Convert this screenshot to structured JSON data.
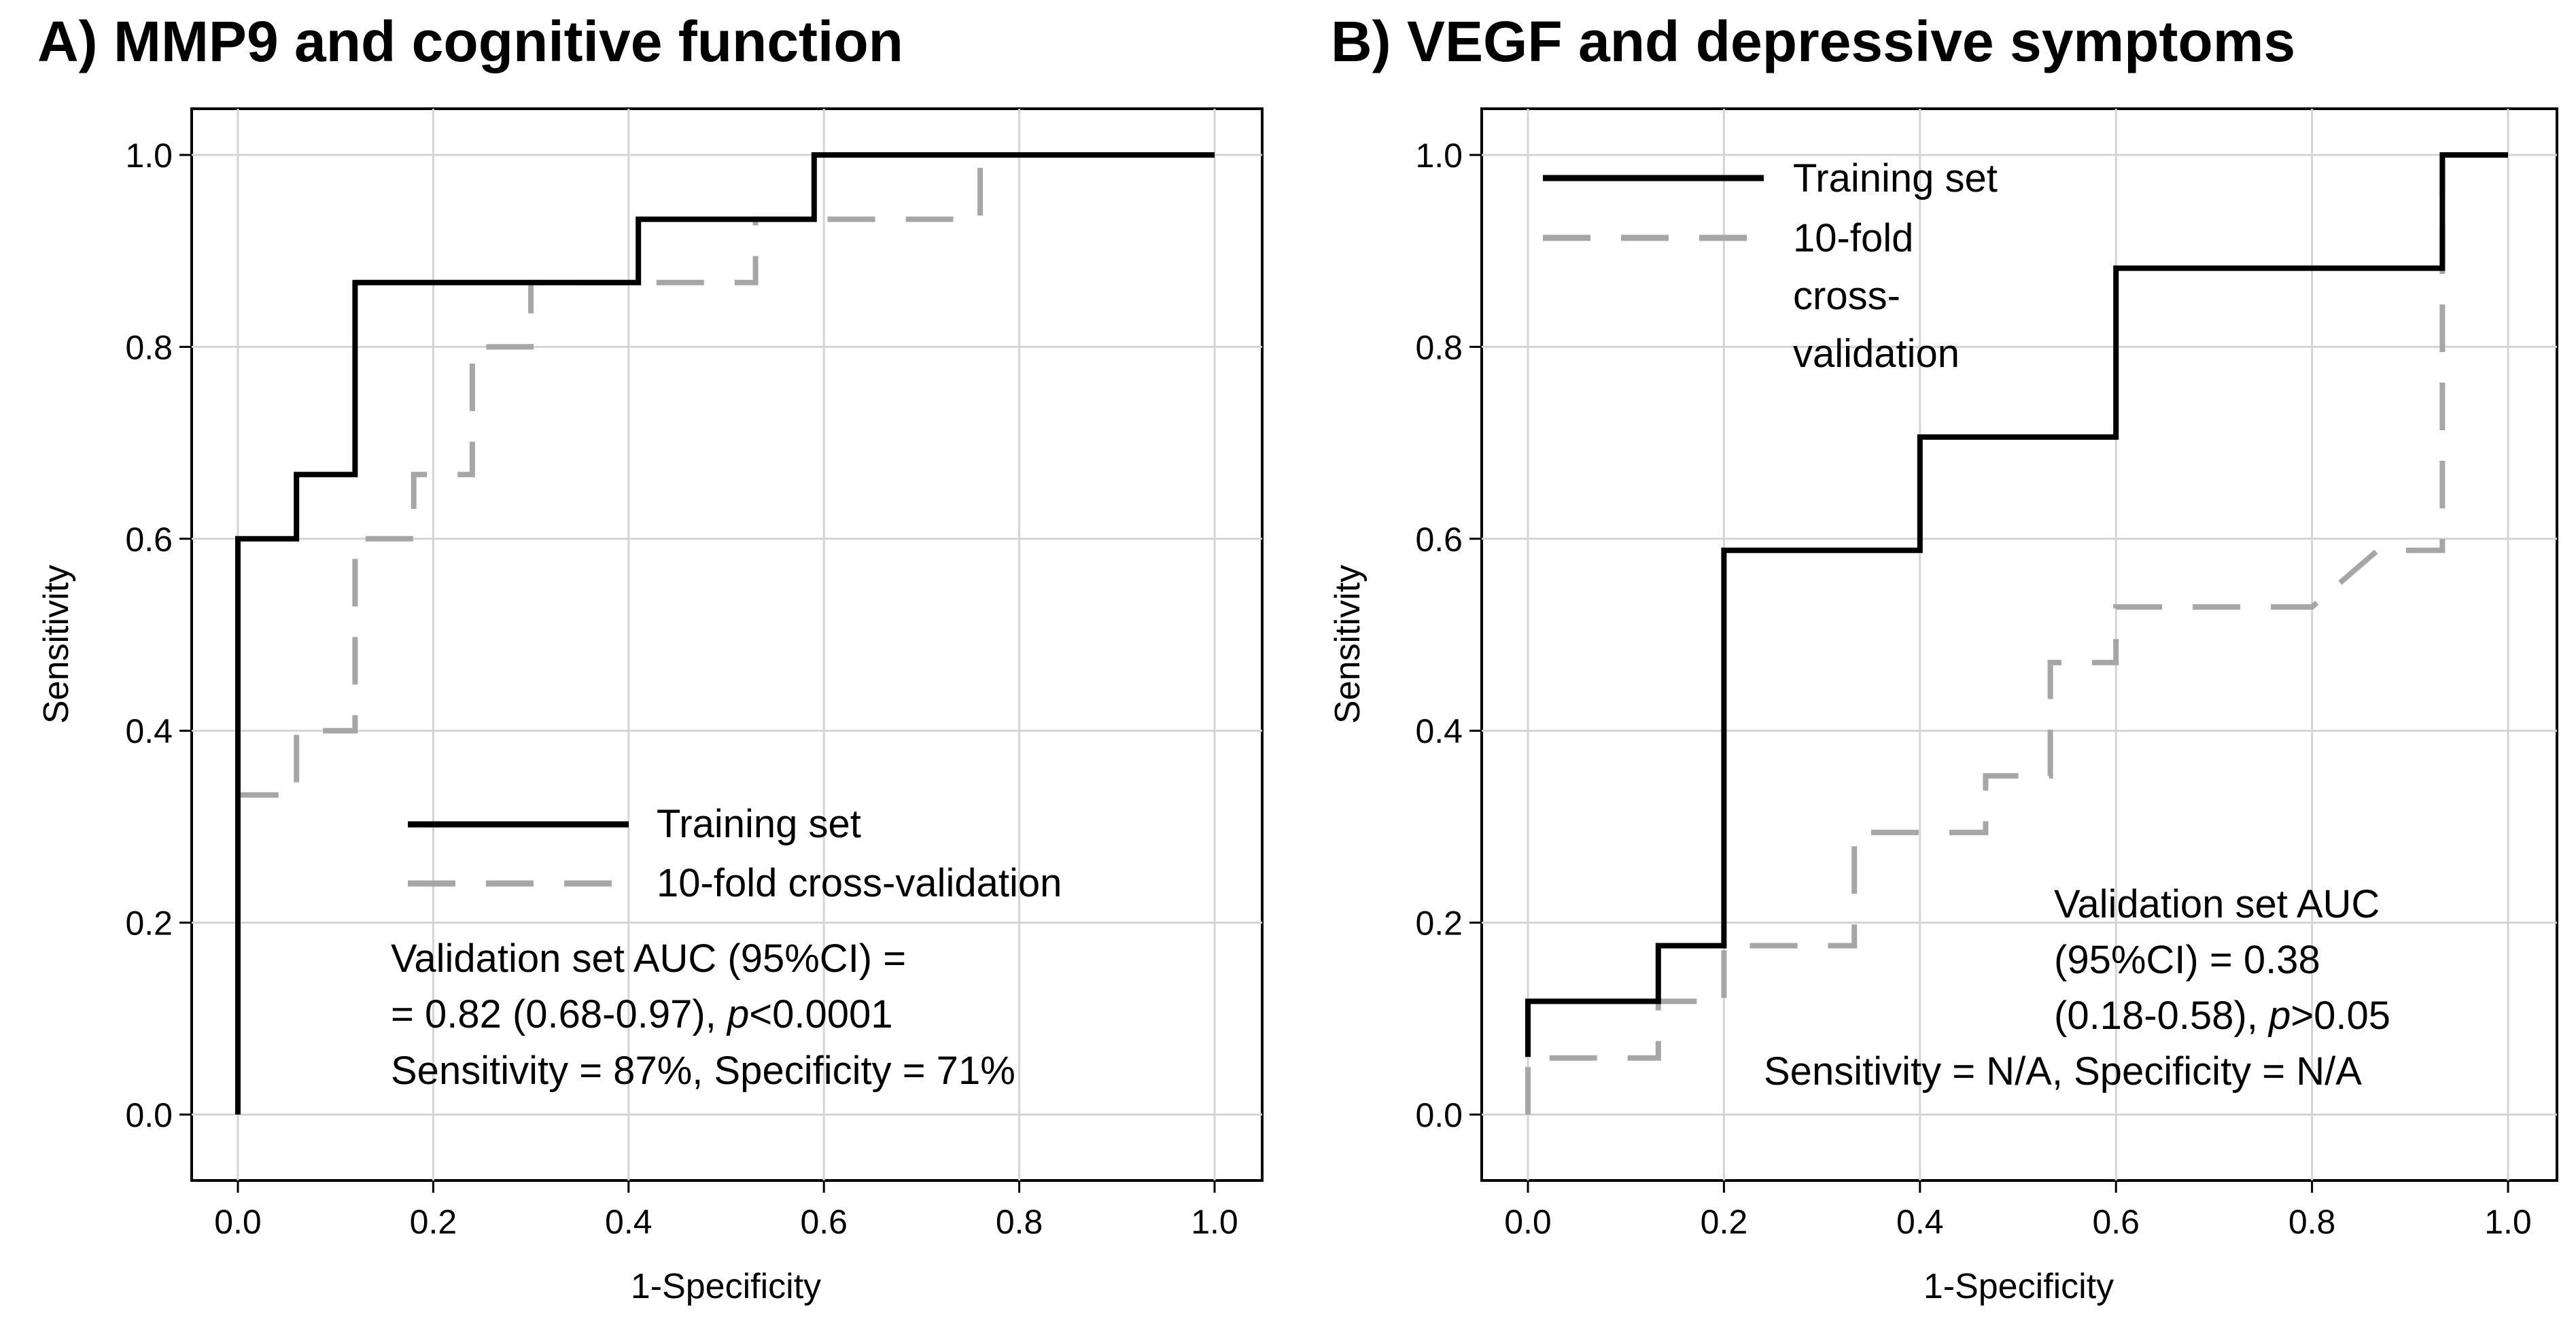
{
  "chart_data": [
    {
      "type": "line",
      "panel": "A",
      "title": "A) MMP9 and cognitive function",
      "xlabel": "1-Specificity",
      "ylabel": "Sensitivity",
      "xlim": [
        0,
        1
      ],
      "ylim": [
        0,
        1
      ],
      "xticks": [
        "0.0",
        "0.2",
        "0.4",
        "0.6",
        "0.8",
        "1.0"
      ],
      "yticks": [
        "0.0",
        "0.2",
        "0.4",
        "0.6",
        "0.8",
        "1.0"
      ],
      "grid": true,
      "legend_position": "lower-right",
      "series": [
        {
          "name": "Training set",
          "style": "solid",
          "color": "#000000",
          "x": [
            0,
            0,
            0.06,
            0.06,
            0.12,
            0.12,
            0.41,
            0.41,
            0.59,
            0.59,
            1.0
          ],
          "y": [
            0,
            0.6,
            0.6,
            0.667,
            0.667,
            0.867,
            0.867,
            0.933,
            0.933,
            1.0,
            1.0
          ]
        },
        {
          "name": "10-fold cross-validation",
          "style": "dashed",
          "color": "#a6a6a6",
          "x": [
            0,
            0,
            0.06,
            0.06,
            0.12,
            0.12,
            0.18,
            0.18,
            0.24,
            0.24,
            0.3,
            0.3,
            0.53,
            0.53,
            0.76,
            0.76,
            1.0
          ],
          "y": [
            0,
            0.333,
            0.333,
            0.4,
            0.4,
            0.6,
            0.6,
            0.667,
            0.667,
            0.8,
            0.8,
            0.867,
            0.867,
            0.933,
            0.933,
            1.0,
            1.0
          ]
        }
      ],
      "annotation": [
        "Validation set AUC (95%CI) =",
        "= 0.82 (0.68-0.97), ",
        "p",
        "<0.0001",
        "Sensitivity = 87%, Specificity = 71%"
      ]
    },
    {
      "type": "line",
      "panel": "B",
      "title": "B) VEGF and depressive symptoms",
      "xlabel": "1-Specificity",
      "ylabel": "Sensitivity",
      "xlim": [
        0,
        1
      ],
      "ylim": [
        0,
        1
      ],
      "xticks": [
        "0.0",
        "0.2",
        "0.4",
        "0.6",
        "0.8",
        "1.0"
      ],
      "yticks": [
        "0.0",
        "0.2",
        "0.4",
        "0.6",
        "0.8",
        "1.0"
      ],
      "grid": true,
      "legend_position": "upper-left",
      "series": [
        {
          "name": "Training set",
          "style": "solid",
          "color": "#000000",
          "x": [
            0,
            0,
            0.133,
            0.133,
            0.2,
            0.2,
            0.4,
            0.4,
            0.6,
            0.6,
            0.933,
            0.933,
            1.0
          ],
          "y": [
            0.06,
            0.118,
            0.118,
            0.176,
            0.176,
            0.588,
            0.588,
            0.706,
            0.706,
            0.882,
            0.882,
            1.0,
            1.0
          ]
        },
        {
          "name": "10-fold cross-validation",
          "style": "dashed",
          "color": "#a6a6a6",
          "x": [
            0,
            0,
            0.133,
            0.133,
            0.2,
            0.2,
            0.333,
            0.333,
            0.467,
            0.467,
            0.533,
            0.533,
            0.6,
            0.6,
            0.8,
            0.867,
            0.933,
            0.933,
            1.0
          ],
          "y": [
            0,
            0.059,
            0.059,
            0.118,
            0.118,
            0.176,
            0.176,
            0.294,
            0.294,
            0.353,
            0.353,
            0.471,
            0.471,
            0.529,
            0.529,
            0.588,
            0.588,
            1.0,
            1.0
          ]
        }
      ],
      "legend_labels": [
        "Training set",
        "10-fold",
        "cross-",
        "validation"
      ],
      "annotation": [
        "Validation set AUC",
        "(95%CI) = 0.38",
        "(0.18-0.58), ",
        "p",
        ">0.05",
        "Sensitivity = N/A, Specificity = N/A"
      ]
    }
  ]
}
